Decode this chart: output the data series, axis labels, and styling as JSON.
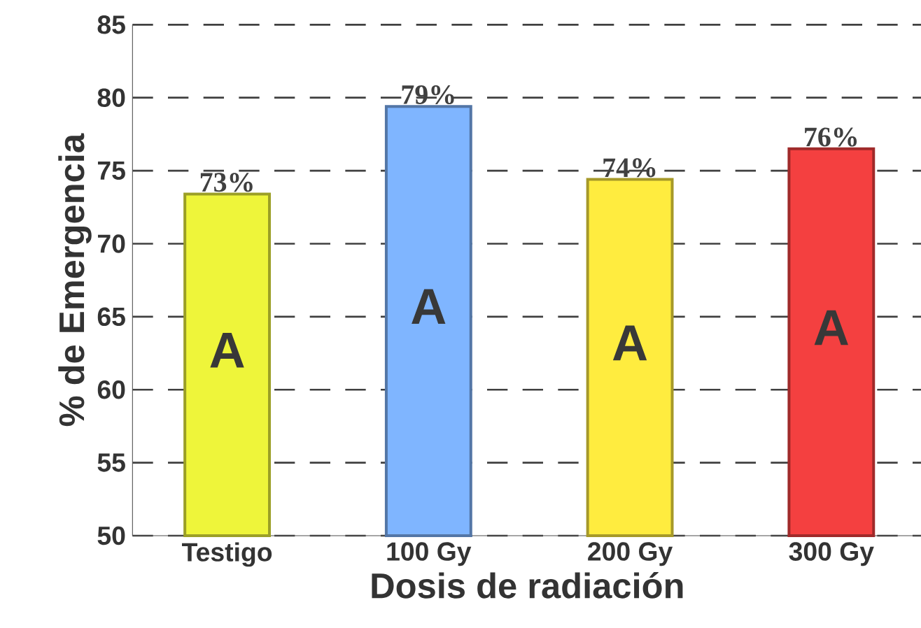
{
  "chart_data": {
    "type": "bar",
    "xlabel": "Dosis de radiación",
    "ylabel": "% de Emergencia",
    "categories": [
      "Testigo",
      "100 Gy",
      "200 Gy",
      "300 Gy"
    ],
    "values": [
      73.4,
      79.4,
      74.4,
      76.5
    ],
    "value_labels": [
      "73%",
      "79%",
      "74%",
      "76%"
    ],
    "colors": [
      "#eef53a",
      "#7fb5ff",
      "#ffec3f",
      "#f44040"
    ],
    "ylim": [
      50,
      85
    ],
    "yticks": [
      50,
      55,
      60,
      65,
      70,
      75,
      80,
      85
    ],
    "grid": "y",
    "annotations": [
      "A",
      "A",
      "A",
      "A"
    ]
  }
}
